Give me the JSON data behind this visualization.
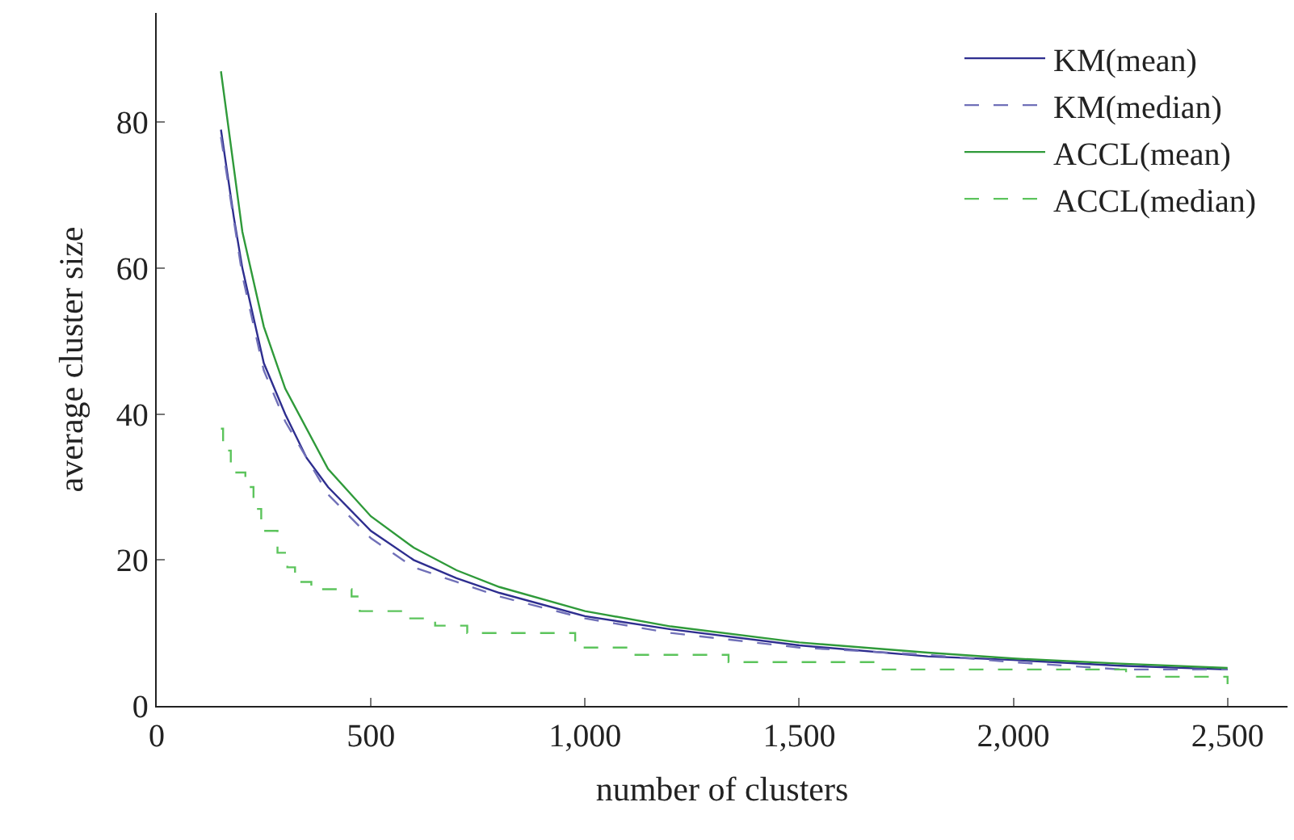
{
  "chart_data": {
    "type": "line",
    "xlabel": "number of clusters",
    "ylabel": "average cluster size",
    "xlim": [
      0,
      2640
    ],
    "ylim": [
      0,
      95
    ],
    "xticks": [
      0,
      500,
      {
        "value": 1000,
        "label": "1,000"
      },
      {
        "value": 1500,
        "label": "1,500"
      },
      {
        "value": 2000,
        "label": "2,000"
      },
      {
        "value": 2500,
        "label": "2,500"
      }
    ],
    "yticks": [
      0,
      20,
      40,
      60,
      80
    ],
    "grid": false,
    "legend": "top right",
    "marker": "none",
    "series": [
      {
        "name": "KM(mean)",
        "color": "#2e2e8f",
        "line_style": "solid",
        "x": [
          150,
          160,
          180,
          200,
          250,
          300,
          350,
          400,
          500,
          600,
          700,
          800,
          1000,
          1200,
          1500,
          1800,
          2000,
          2250,
          2500
        ],
        "values": [
          79,
          75,
          67,
          60,
          47,
          40,
          34,
          30,
          24,
          20,
          17.5,
          15.5,
          12.3,
          10.5,
          8.3,
          6.8,
          6.3,
          5.5,
          5.0
        ]
      },
      {
        "name": "KM(median)",
        "color": "#7070b8",
        "line_style": "dashed",
        "x": [
          150,
          200,
          250,
          300,
          400,
          500,
          600,
          700,
          800,
          1000,
          1200,
          1500,
          1800,
          2000,
          2250,
          2500
        ],
        "values": [
          78,
          59,
          46,
          39,
          29,
          23,
          19,
          17,
          15,
          12,
          10,
          8,
          7,
          6,
          5,
          5
        ]
      },
      {
        "name": "ACCL(mean)",
        "color": "#2f9a3a",
        "line_style": "solid",
        "x": [
          150,
          200,
          250,
          300,
          400,
          500,
          600,
          700,
          800,
          1000,
          1200,
          1500,
          1800,
          2000,
          2250,
          2500
        ],
        "values": [
          87,
          65,
          52,
          43.5,
          32.5,
          26,
          21.7,
          18.6,
          16.3,
          13,
          10.9,
          8.7,
          7.3,
          6.5,
          5.8,
          5.2
        ]
      },
      {
        "name": "ACCL(median)",
        "type": "step",
        "color": "#5cc45c",
        "line_style": "dashed",
        "x": [
          150,
          155,
          173,
          207,
          226,
          244,
          282,
          305,
          323,
          361,
          455,
          474,
          575,
          650,
          725,
          977,
          1100,
          1335,
          1688,
          2263,
          2500
        ],
        "values": [
          38,
          35,
          32,
          30,
          27,
          24,
          21,
          19,
          17,
          16,
          15,
          13,
          12,
          11,
          10,
          8,
          7,
          6,
          5,
          4,
          3
        ]
      }
    ]
  }
}
